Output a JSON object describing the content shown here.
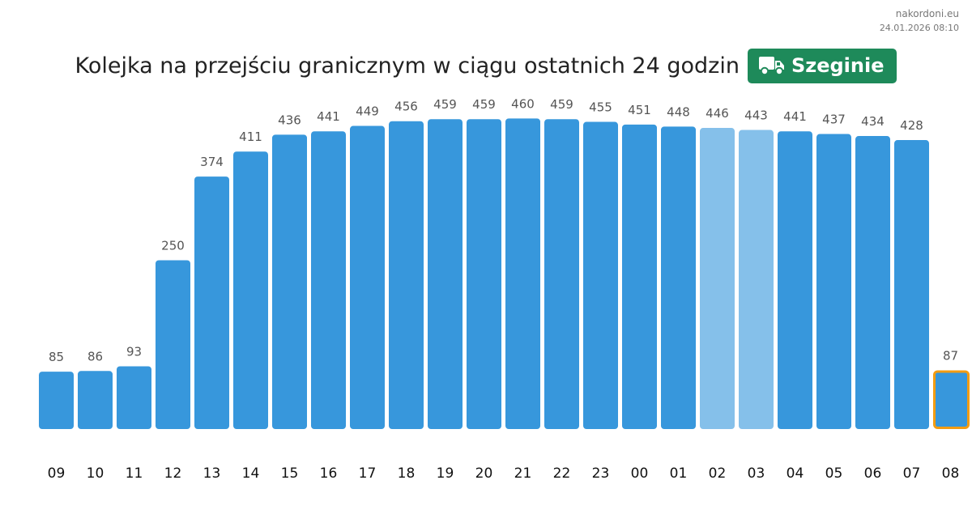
{
  "source": {
    "site": "nakordoni.eu",
    "timestamp": "24.01.2026 08:10"
  },
  "header": {
    "title": "Kolejka na przejściu granicznym w ciągu ostatnich 24 godzin",
    "badge_label": "Szeginie",
    "badge_icon": "truck-icon"
  },
  "colors": {
    "bar": "#3797dc",
    "bar_light": "#85c0ea",
    "current_border": "#f39c12",
    "badge": "#1e8a5a",
    "value_label": "#555555",
    "hour_label": "#111111"
  },
  "chart_data": {
    "type": "bar",
    "title": "Kolejka na przejściu granicznym w ciągu ostatnich 24 godzin",
    "categories": [
      "09",
      "10",
      "11",
      "12",
      "13",
      "14",
      "15",
      "16",
      "17",
      "18",
      "19",
      "20",
      "21",
      "22",
      "23",
      "00",
      "01",
      "02",
      "03",
      "04",
      "05",
      "06",
      "07",
      "08"
    ],
    "values": [
      85,
      86,
      93,
      250,
      374,
      411,
      436,
      441,
      449,
      456,
      459,
      459,
      460,
      459,
      455,
      451,
      448,
      446,
      443,
      441,
      437,
      434,
      428,
      87
    ],
    "lighter_bars": [
      "02",
      "03"
    ],
    "highlighted_bar": "08",
    "ylim": [
      0,
      500
    ],
    "grid": false,
    "legend": "none"
  }
}
